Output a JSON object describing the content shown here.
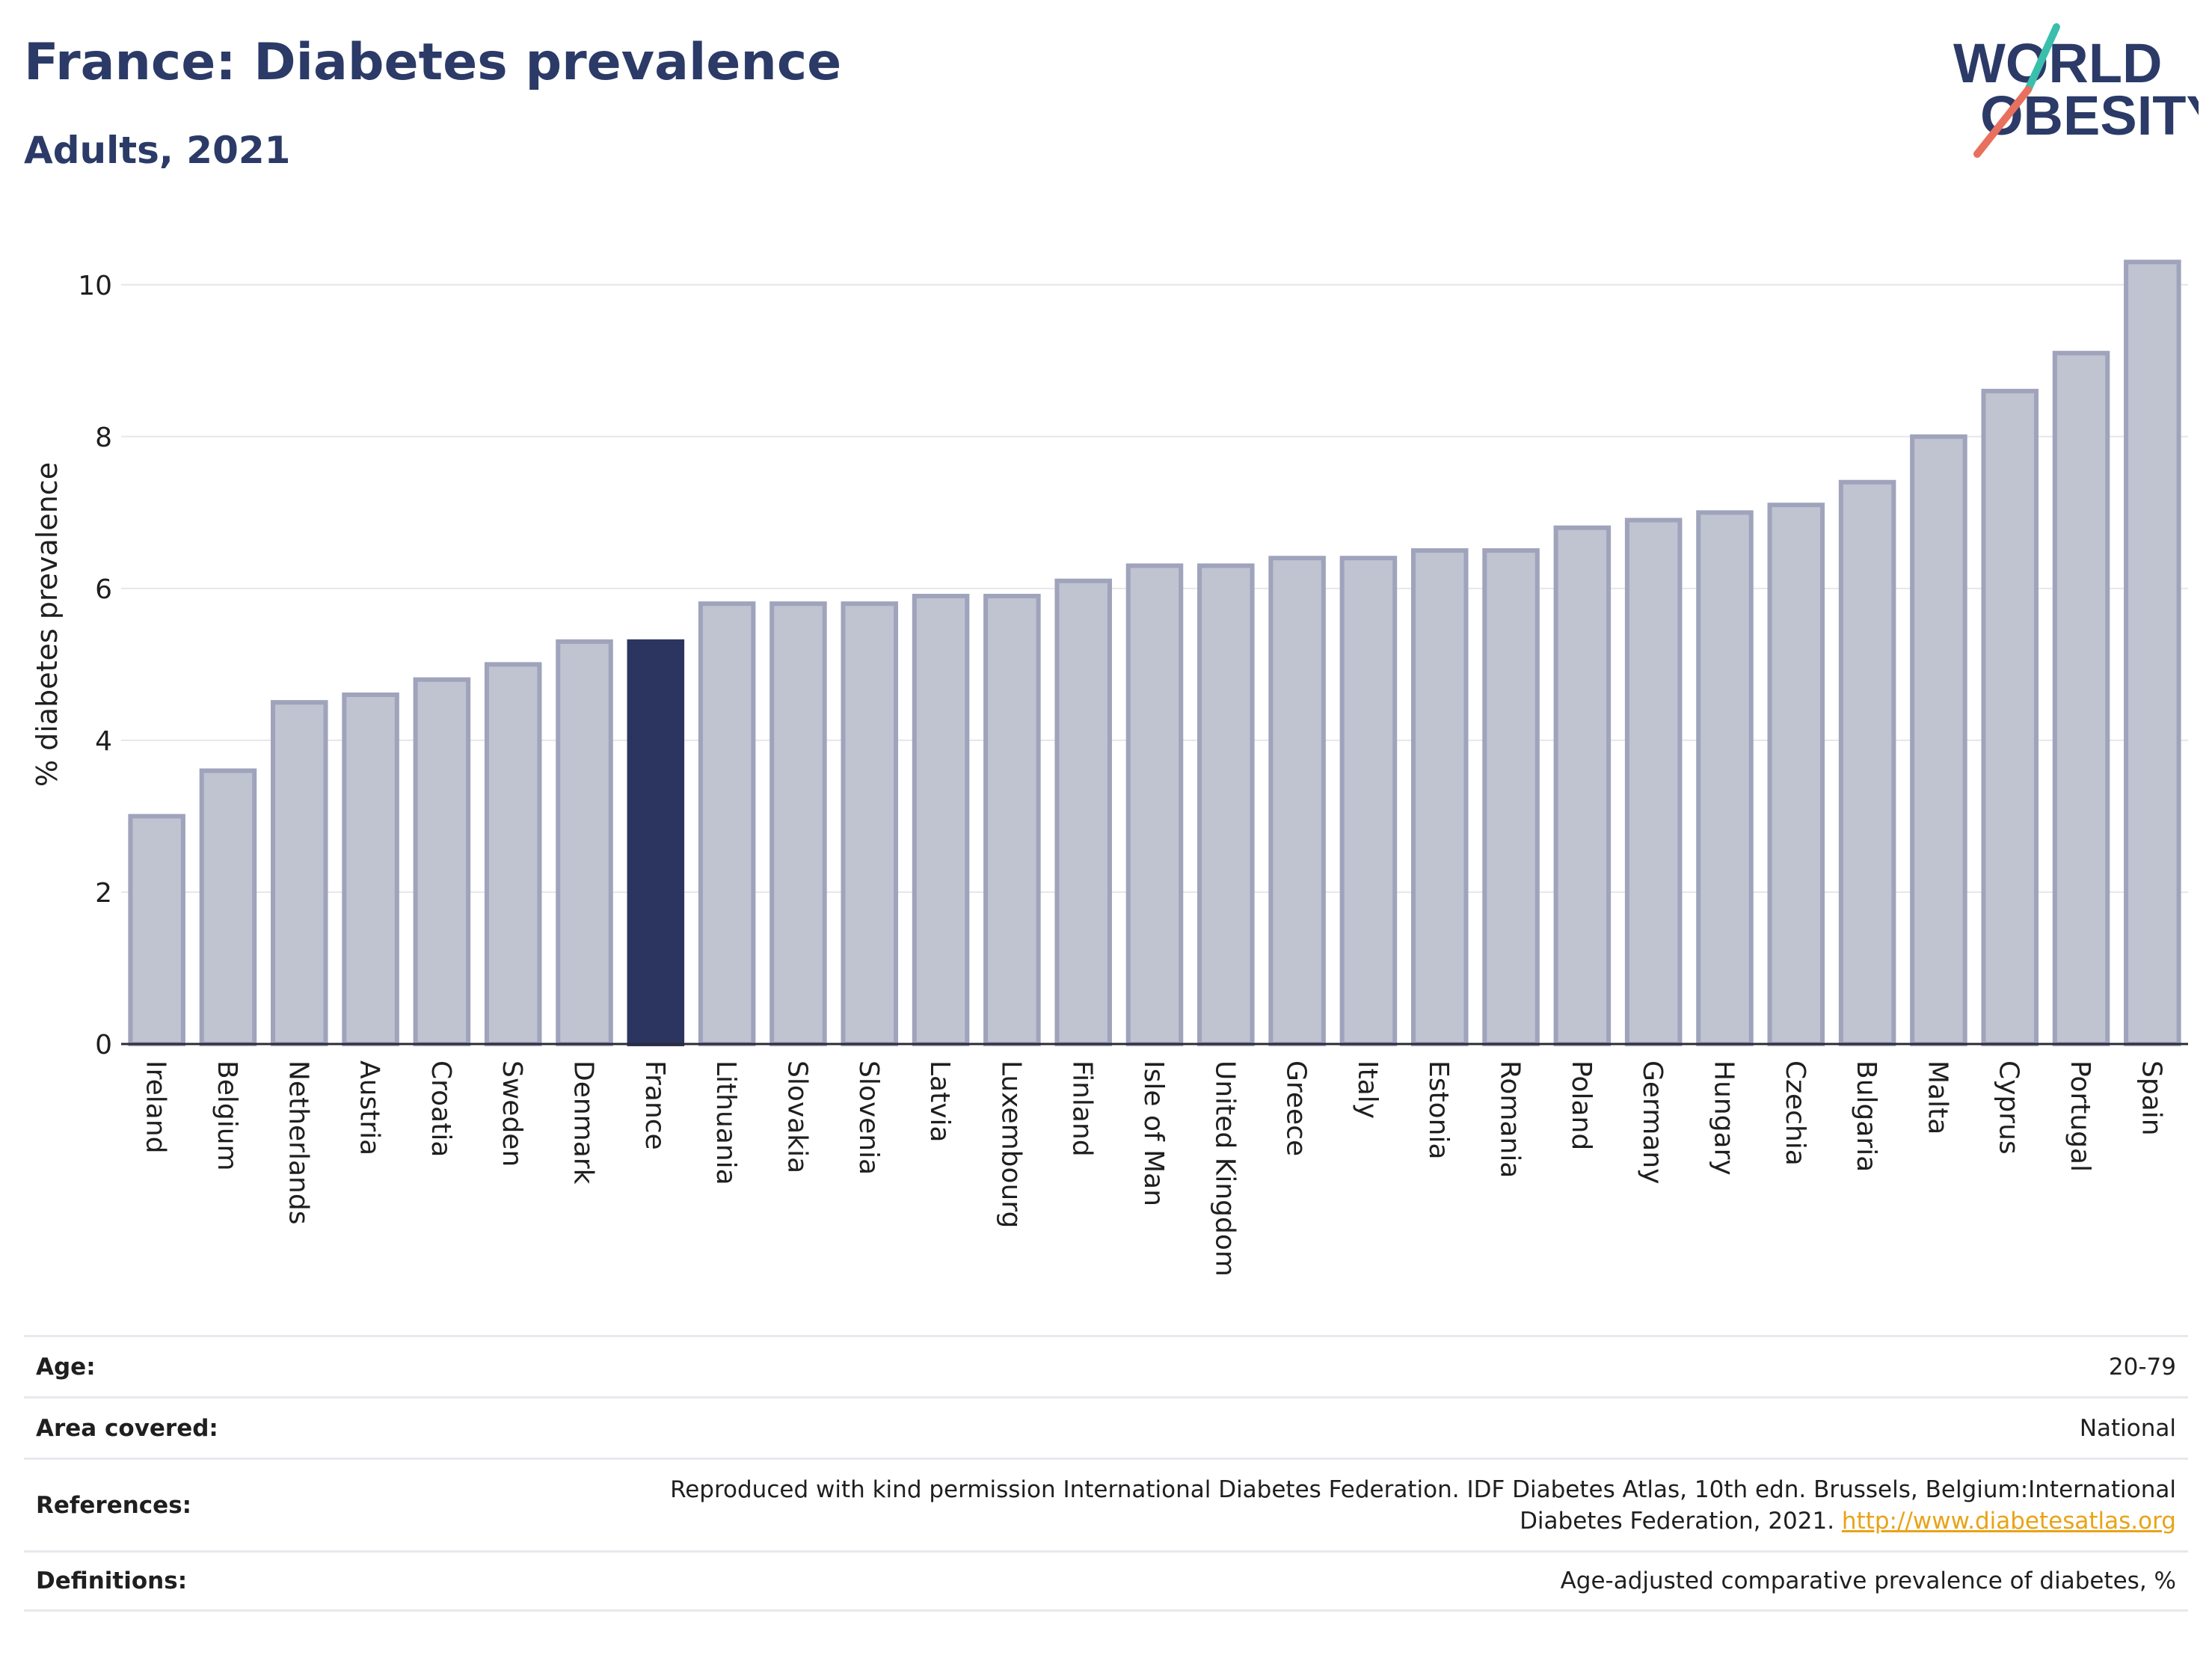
{
  "header": {
    "title": "France: Diabetes prevalence",
    "subtitle": "Adults, 2021"
  },
  "logo": {
    "line1": "WORLD",
    "line2": "OBESITY"
  },
  "chart_data": {
    "type": "bar",
    "ylabel": "% diabetes prevalence",
    "xlabel": "",
    "ylim": [
      0,
      10.5
    ],
    "yticks": [
      0,
      2,
      4,
      6,
      8,
      10
    ],
    "grid": true,
    "highlight": "France",
    "categories": [
      "Ireland",
      "Belgium",
      "Netherlands",
      "Austria",
      "Croatia",
      "Sweden",
      "Denmark",
      "France",
      "Lithuania",
      "Slovakia",
      "Slovenia",
      "Latvia",
      "Luxembourg",
      "Finland",
      "Isle of Man",
      "United Kingdom",
      "Greece",
      "Italy",
      "Estonia",
      "Romania",
      "Poland",
      "Germany",
      "Hungary",
      "Czechia",
      "Bulgaria",
      "Malta",
      "Cyprus",
      "Portugal",
      "Spain"
    ],
    "values": [
      3.0,
      3.6,
      4.5,
      4.6,
      4.8,
      5.0,
      5.3,
      5.3,
      5.8,
      5.8,
      5.8,
      5.9,
      5.9,
      6.1,
      6.3,
      6.3,
      6.4,
      6.4,
      6.5,
      6.5,
      6.8,
      6.9,
      7.0,
      7.1,
      7.4,
      8.0,
      8.6,
      9.1,
      10.3
    ]
  },
  "colors": {
    "bar": "#c0c3d0",
    "bar_border": "#9fa3bb",
    "highlight": "#2b3560",
    "title": "#2b3a67",
    "logo_teal": "#3bbfad",
    "logo_coral": "#e8705e",
    "link": "#e8a317"
  },
  "meta": {
    "age_label": "Age:",
    "age_value": "20-79",
    "area_label": "Area covered:",
    "area_value": "National",
    "references_label": "References:",
    "references_line1": "Reproduced with kind permission International Diabetes Federation.  IDF Diabetes Atlas, 10th edn. Brussels, Belgium:International",
    "references_line2": "Diabetes Federation, 2021.",
    "references_link": "http://www.diabetesatlas.org",
    "definitions_label": "Definitions:",
    "definitions_value": "Age-adjusted comparative prevalence of diabetes, %"
  }
}
